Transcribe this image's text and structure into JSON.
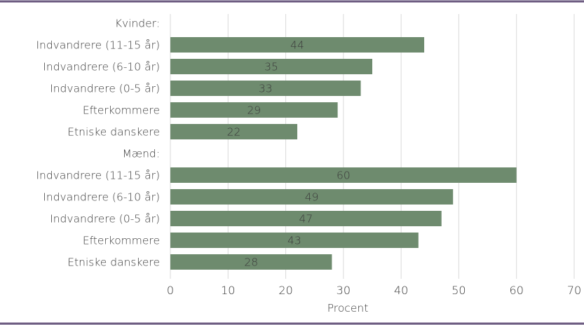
{
  "chart_data": {
    "type": "bar",
    "orientation": "horizontal",
    "categories": [
      "Kvinder:",
      "Indvandrere (11-15 år)",
      "Indvandrere (6-10 år)",
      "Indvandrere (0-5 år)",
      "Efterkommere",
      "Etniske danskere",
      "Mænd:",
      "Indvandrere (11-15 år)",
      "Indvandrere (6-10 år)",
      "Indvandrere (0-5 år)",
      "Efterkommere",
      "Etniske danskere"
    ],
    "values": [
      null,
      44,
      35,
      33,
      29,
      22,
      null,
      60,
      49,
      47,
      43,
      28
    ],
    "data_labels": [
      "",
      "44",
      "35",
      "33",
      "29",
      "22",
      "",
      "60",
      "49",
      "47",
      "43",
      "28"
    ],
    "title": "",
    "xlabel": "Procent",
    "ylabel": "",
    "xlim": [
      0,
      70
    ],
    "xticks": [
      0,
      10,
      20,
      30,
      40,
      50,
      60,
      70
    ],
    "grid": "vertical",
    "legend": "none",
    "colors": {
      "bar": "#6e8b6e",
      "grid": "#d9d9d9",
      "frame_rule": "#6b5a80",
      "text": "#3a3a3a"
    }
  }
}
